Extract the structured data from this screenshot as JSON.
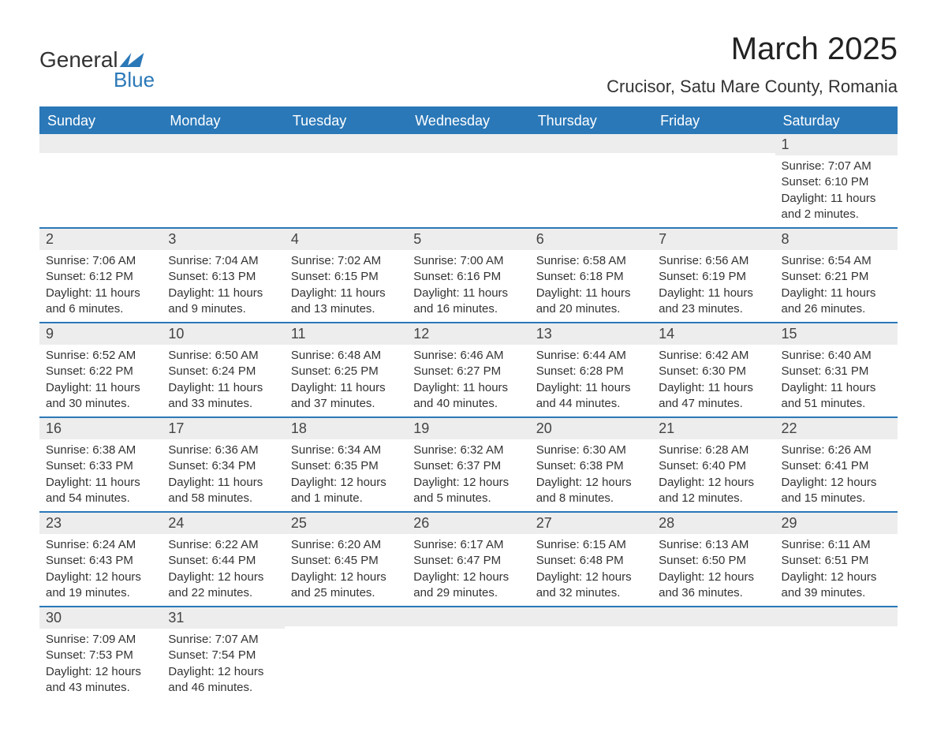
{
  "logo": {
    "line1": "General",
    "line2": "Blue"
  },
  "title": "March 2025",
  "location": "Crucisor, Satu Mare County, Romania",
  "colors": {
    "header_bg": "#2a78b8",
    "header_fg": "#ffffff",
    "daynum_bg": "#ededed",
    "text": "#333333",
    "rule": "#2a78b8"
  },
  "weekdays": [
    "Sunday",
    "Monday",
    "Tuesday",
    "Wednesday",
    "Thursday",
    "Friday",
    "Saturday"
  ],
  "labels": {
    "sunrise": "Sunrise:",
    "sunset": "Sunset:",
    "daylight": "Daylight:"
  },
  "weeks": [
    [
      null,
      null,
      null,
      null,
      null,
      null,
      {
        "n": "1",
        "sunrise": "7:07 AM",
        "sunset": "6:10 PM",
        "daylight": "11 hours and 2 minutes."
      }
    ],
    [
      {
        "n": "2",
        "sunrise": "7:06 AM",
        "sunset": "6:12 PM",
        "daylight": "11 hours and 6 minutes."
      },
      {
        "n": "3",
        "sunrise": "7:04 AM",
        "sunset": "6:13 PM",
        "daylight": "11 hours and 9 minutes."
      },
      {
        "n": "4",
        "sunrise": "7:02 AM",
        "sunset": "6:15 PM",
        "daylight": "11 hours and 13 minutes."
      },
      {
        "n": "5",
        "sunrise": "7:00 AM",
        "sunset": "6:16 PM",
        "daylight": "11 hours and 16 minutes."
      },
      {
        "n": "6",
        "sunrise": "6:58 AM",
        "sunset": "6:18 PM",
        "daylight": "11 hours and 20 minutes."
      },
      {
        "n": "7",
        "sunrise": "6:56 AM",
        "sunset": "6:19 PM",
        "daylight": "11 hours and 23 minutes."
      },
      {
        "n": "8",
        "sunrise": "6:54 AM",
        "sunset": "6:21 PM",
        "daylight": "11 hours and 26 minutes."
      }
    ],
    [
      {
        "n": "9",
        "sunrise": "6:52 AM",
        "sunset": "6:22 PM",
        "daylight": "11 hours and 30 minutes."
      },
      {
        "n": "10",
        "sunrise": "6:50 AM",
        "sunset": "6:24 PM",
        "daylight": "11 hours and 33 minutes."
      },
      {
        "n": "11",
        "sunrise": "6:48 AM",
        "sunset": "6:25 PM",
        "daylight": "11 hours and 37 minutes."
      },
      {
        "n": "12",
        "sunrise": "6:46 AM",
        "sunset": "6:27 PM",
        "daylight": "11 hours and 40 minutes."
      },
      {
        "n": "13",
        "sunrise": "6:44 AM",
        "sunset": "6:28 PM",
        "daylight": "11 hours and 44 minutes."
      },
      {
        "n": "14",
        "sunrise": "6:42 AM",
        "sunset": "6:30 PM",
        "daylight": "11 hours and 47 minutes."
      },
      {
        "n": "15",
        "sunrise": "6:40 AM",
        "sunset": "6:31 PM",
        "daylight": "11 hours and 51 minutes."
      }
    ],
    [
      {
        "n": "16",
        "sunrise": "6:38 AM",
        "sunset": "6:33 PM",
        "daylight": "11 hours and 54 minutes."
      },
      {
        "n": "17",
        "sunrise": "6:36 AM",
        "sunset": "6:34 PM",
        "daylight": "11 hours and 58 minutes."
      },
      {
        "n": "18",
        "sunrise": "6:34 AM",
        "sunset": "6:35 PM",
        "daylight": "12 hours and 1 minute."
      },
      {
        "n": "19",
        "sunrise": "6:32 AM",
        "sunset": "6:37 PM",
        "daylight": "12 hours and 5 minutes."
      },
      {
        "n": "20",
        "sunrise": "6:30 AM",
        "sunset": "6:38 PM",
        "daylight": "12 hours and 8 minutes."
      },
      {
        "n": "21",
        "sunrise": "6:28 AM",
        "sunset": "6:40 PM",
        "daylight": "12 hours and 12 minutes."
      },
      {
        "n": "22",
        "sunrise": "6:26 AM",
        "sunset": "6:41 PM",
        "daylight": "12 hours and 15 minutes."
      }
    ],
    [
      {
        "n": "23",
        "sunrise": "6:24 AM",
        "sunset": "6:43 PM",
        "daylight": "12 hours and 19 minutes."
      },
      {
        "n": "24",
        "sunrise": "6:22 AM",
        "sunset": "6:44 PM",
        "daylight": "12 hours and 22 minutes."
      },
      {
        "n": "25",
        "sunrise": "6:20 AM",
        "sunset": "6:45 PM",
        "daylight": "12 hours and 25 minutes."
      },
      {
        "n": "26",
        "sunrise": "6:17 AM",
        "sunset": "6:47 PM",
        "daylight": "12 hours and 29 minutes."
      },
      {
        "n": "27",
        "sunrise": "6:15 AM",
        "sunset": "6:48 PM",
        "daylight": "12 hours and 32 minutes."
      },
      {
        "n": "28",
        "sunrise": "6:13 AM",
        "sunset": "6:50 PM",
        "daylight": "12 hours and 36 minutes."
      },
      {
        "n": "29",
        "sunrise": "6:11 AM",
        "sunset": "6:51 PM",
        "daylight": "12 hours and 39 minutes."
      }
    ],
    [
      {
        "n": "30",
        "sunrise": "7:09 AM",
        "sunset": "7:53 PM",
        "daylight": "12 hours and 43 minutes."
      },
      {
        "n": "31",
        "sunrise": "7:07 AM",
        "sunset": "7:54 PM",
        "daylight": "12 hours and 46 minutes."
      },
      null,
      null,
      null,
      null,
      null
    ]
  ]
}
